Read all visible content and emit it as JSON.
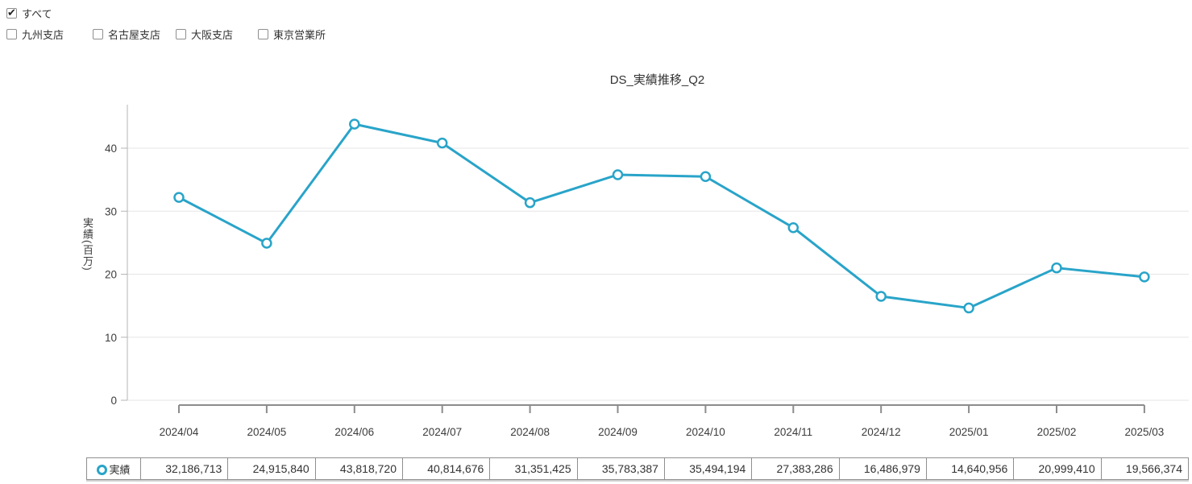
{
  "filters": {
    "all": {
      "label": "すべて",
      "checked": true
    },
    "branches": [
      {
        "label": "九州支店",
        "checked": false
      },
      {
        "label": "名古屋支店",
        "checked": false
      },
      {
        "label": "大阪支店",
        "checked": false
      },
      {
        "label": "東京営業所",
        "checked": false
      }
    ]
  },
  "chart_data": {
    "type": "line",
    "title": "DS_実績推移_Q2",
    "xlabel": "",
    "ylabel": "実績(百万)",
    "categories": [
      "2024/04",
      "2024/05",
      "2024/06",
      "2024/07",
      "2024/08",
      "2024/09",
      "2024/10",
      "2024/11",
      "2024/12",
      "2025/01",
      "2025/02",
      "2025/03"
    ],
    "series": [
      {
        "name": "実績",
        "values": [
          32186713,
          24915840,
          43818720,
          40814676,
          31351425,
          35783387,
          35494194,
          27383286,
          16486979,
          14640956,
          20999410,
          19566374
        ]
      }
    ],
    "values_millions": [
      32.19,
      24.92,
      43.82,
      40.81,
      31.35,
      35.78,
      35.49,
      27.38,
      16.49,
      14.64,
      21.0,
      19.57
    ],
    "ylim": [
      0,
      45
    ],
    "yticks": [
      0,
      10,
      20,
      30,
      40
    ],
    "grid": true,
    "legend_position": "table-bottom",
    "line_color": "#29a4c9",
    "marker": "open-circle",
    "marker_fill": "#ffffff"
  },
  "table": {
    "legend_label": "実績",
    "values": [
      "32,186,713",
      "24,915,840",
      "43,818,720",
      "40,814,676",
      "31,351,425",
      "35,783,387",
      "35,494,194",
      "27,383,286",
      "16,486,979",
      "14,640,956",
      "20,999,410",
      "19,566,374"
    ]
  },
  "colors": {
    "series": "#29a4c9",
    "gridline": "#e5e5e5",
    "y_axis": "#b5b5b5",
    "x_axis": "#8c8c8c",
    "text": "#3c3c3c"
  }
}
